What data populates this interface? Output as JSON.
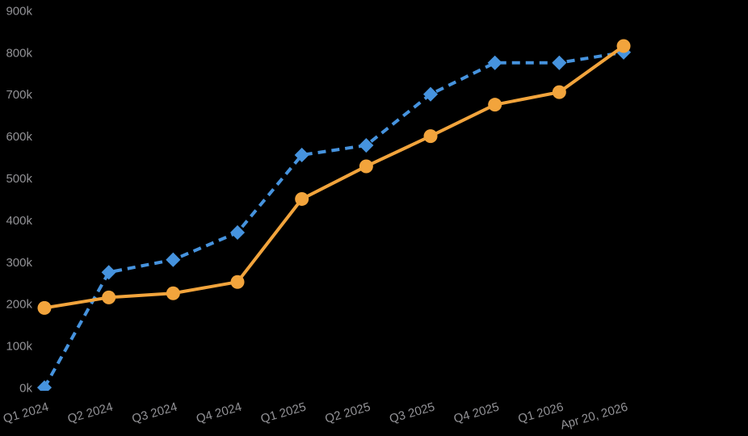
{
  "chart_data": {
    "type": "line",
    "title": "",
    "xlabel": "",
    "ylabel": "",
    "legend": "none",
    "grid": false,
    "background_color": "#000000",
    "axis_label_color": "#929296",
    "ylim": [
      0,
      900000
    ],
    "y_tick_step": 100000,
    "y_tick_labels": [
      "0k",
      "100k",
      "200k",
      "300k",
      "400k",
      "500k",
      "600k",
      "700k",
      "800k",
      "900k"
    ],
    "categories": [
      "Q1 2024",
      "Q2 2024",
      "Q3 2024",
      "Q4 2024",
      "Q1 2025",
      "Q2 2025",
      "Q3 2025",
      "Q4 2025",
      "Q1 2026",
      "Apr 20, 2026"
    ],
    "series": [
      {
        "name": "blue-dashed-series",
        "color": "#4693DE",
        "line_style": "dashed",
        "marker": "diamond",
        "values": [
          0,
          275000,
          305000,
          370000,
          555000,
          578000,
          700000,
          775000,
          775000,
          800000
        ]
      },
      {
        "name": "orange-solid-series",
        "color": "#F2A43C",
        "line_style": "solid",
        "marker": "circle",
        "values": [
          190000,
          215000,
          225000,
          252000,
          450000,
          528000,
          600000,
          675000,
          705000,
          815000
        ]
      }
    ]
  }
}
